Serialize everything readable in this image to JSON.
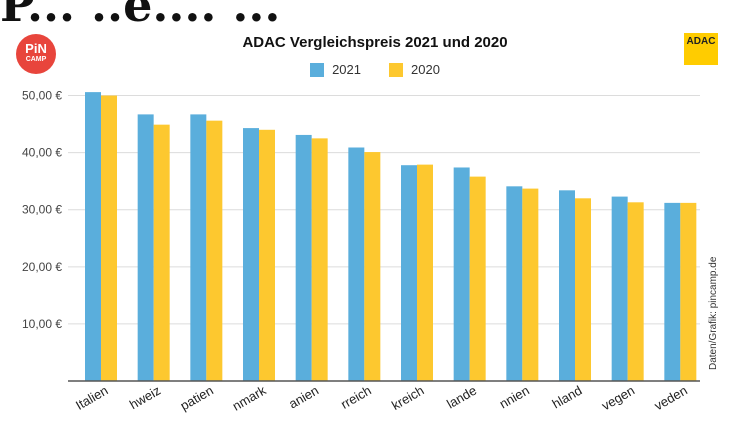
{
  "header_cut_text": "P... ..e.... ...",
  "logos": {
    "pincamp_line1": "PiN",
    "pincamp_line2": "CAMP",
    "adac": "ADAC"
  },
  "colors": {
    "series_2021": "#5aaedc",
    "series_2020": "#fdc82f",
    "gridline": "#dcdcdc",
    "axis": "#555555"
  },
  "chart_data": {
    "type": "bar",
    "title": "ADAC Vergleichspreis 2021 und 2020",
    "credit": "Daten/Grafik: pincamp.de",
    "categories": [
      "Italien",
      "Schweiz",
      "Spatien",
      "Dänemark",
      "Slowanien",
      "Österreich",
      "Frankreich",
      "Niederlande",
      "Großbritannien",
      "Deutschland",
      "Norwegen",
      "Schweden"
    ],
    "category_labels_visible": [
      "Italien",
      "hweiz",
      "patien",
      "nmark",
      "anien",
      "rreich",
      "kreich",
      "lande",
      "nnien",
      "hland",
      "vegen",
      "veden"
    ],
    "series": [
      {
        "name": "2021",
        "values": [
          50.6,
          46.7,
          46.7,
          44.3,
          43.1,
          40.9,
          37.8,
          37.4,
          34.1,
          33.4,
          32.3,
          31.2
        ]
      },
      {
        "name": "2020",
        "values": [
          50.0,
          44.9,
          45.6,
          44.0,
          42.5,
          40.1,
          37.9,
          35.8,
          33.7,
          32.0,
          31.3,
          31.2
        ]
      }
    ],
    "ylim": [
      0,
      55
    ],
    "yticks": [
      10,
      20,
      30,
      40,
      50
    ],
    "ytick_labels": [
      "10,00 €",
      "20,00 €",
      "30,00 €",
      "40,00 €",
      "50,00 €"
    ],
    "grid": true,
    "legend": "top-center"
  }
}
